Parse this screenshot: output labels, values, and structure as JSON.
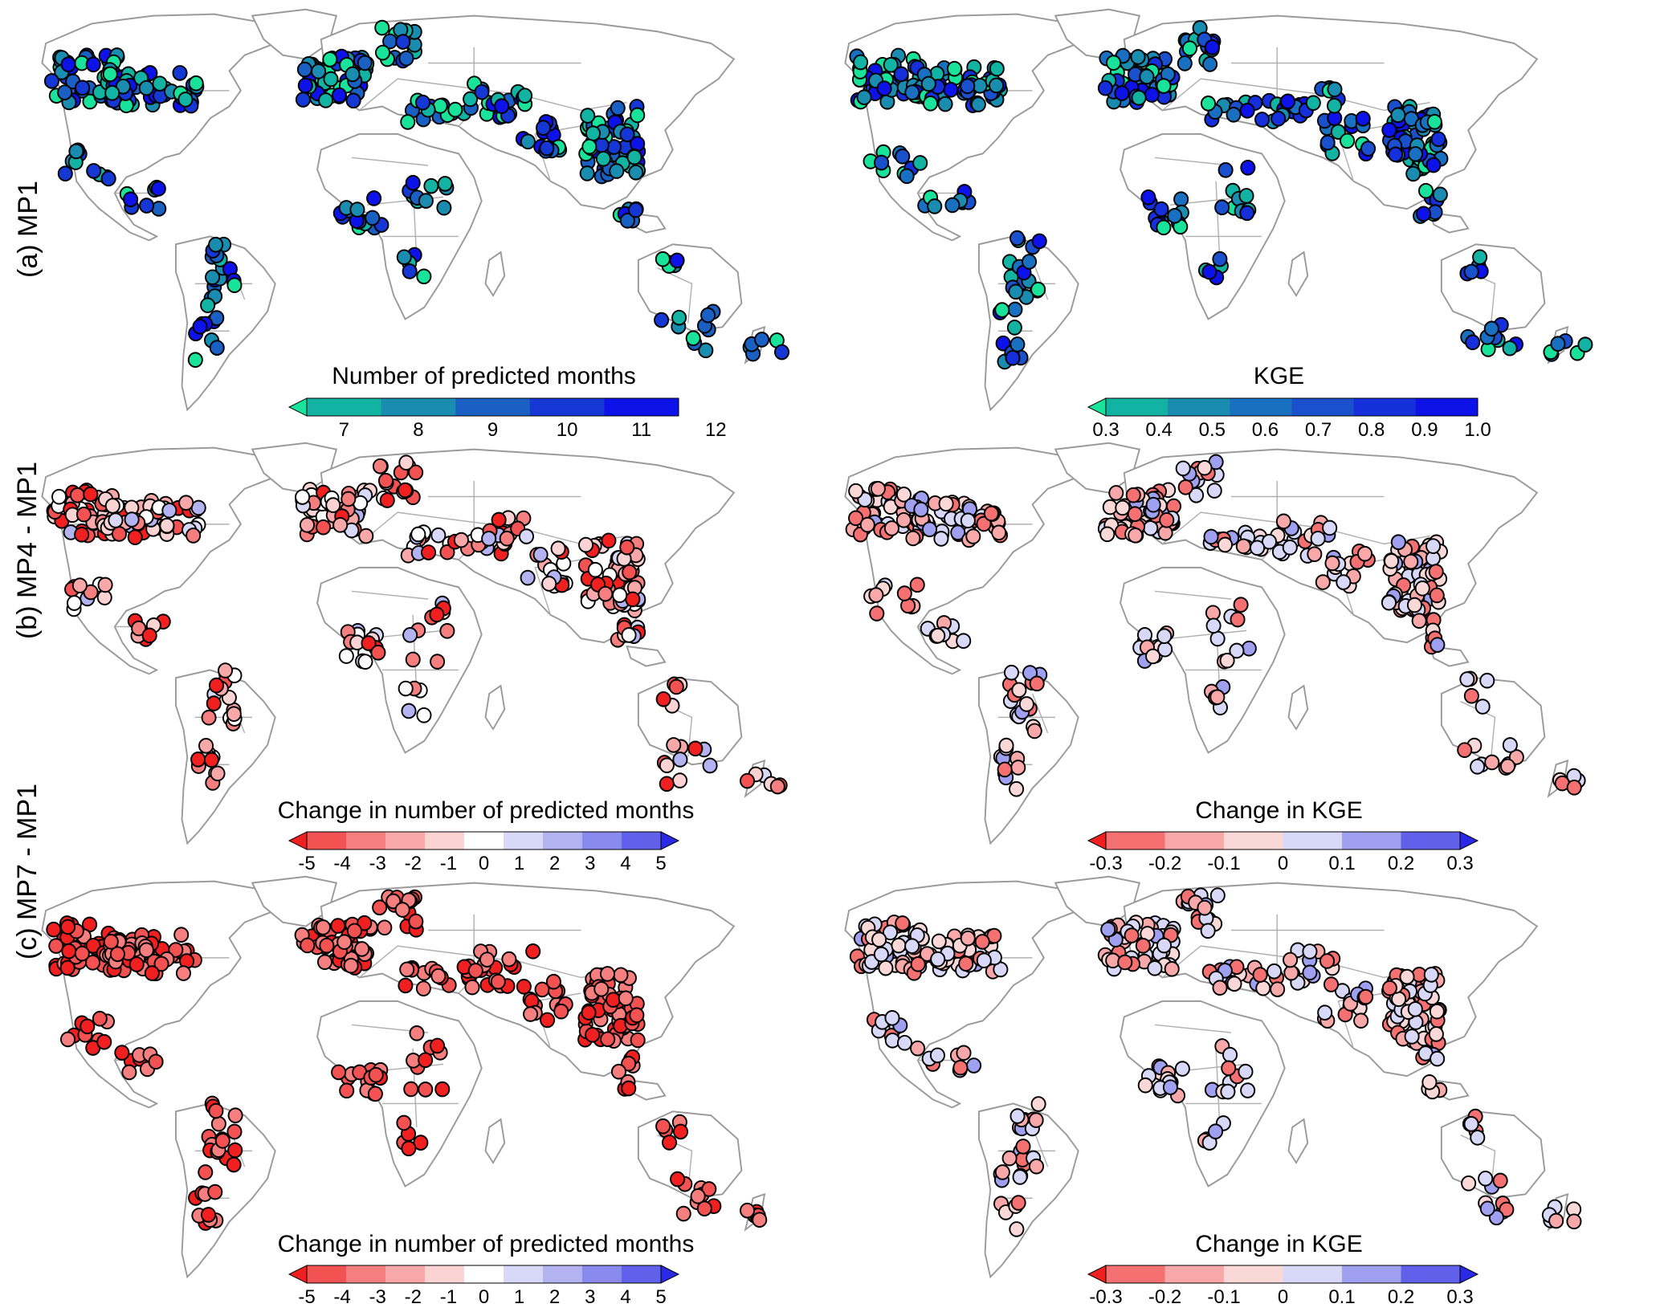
{
  "rows": [
    {
      "id": "a",
      "label": "(a) MP1",
      "left": {
        "title": "Number of predicted months",
        "ticks": [
          "7",
          "8",
          "9",
          "10",
          "11",
          "12"
        ],
        "colors": [
          "#19e39a",
          "#13b3a3",
          "#1a8cb0",
          "#1a60c3",
          "#1538d4",
          "#0c12e8"
        ],
        "extend": "left",
        "mode": "seq"
      },
      "right": {
        "title": "KGE",
        "ticks": [
          "0.3",
          "0.4",
          "0.5",
          "0.6",
          "0.7",
          "0.8",
          "0.9",
          "1.0"
        ],
        "colors": [
          "#19e39a",
          "#13b3a3",
          "#1a8cb0",
          "#1a70c0",
          "#1a50cc",
          "#1530da",
          "#0c12e8"
        ],
        "extend": "left",
        "mode": "seq"
      }
    },
    {
      "id": "b",
      "label": "(b) MP4 - MP1",
      "left": {
        "title": "Change in number of predicted months",
        "ticks": [
          "-5",
          "-4",
          "-3",
          "-2",
          "-1",
          "0",
          "1",
          "2",
          "3",
          "4",
          "5"
        ],
        "colors": [
          "#f02020",
          "#f25252",
          "#f57f7f",
          "#f8a8a8",
          "#fbd3d3",
          "#ffffff",
          "#d8d8f8",
          "#b3b3f2",
          "#8a8aee",
          "#6060ea",
          "#2a2ae6"
        ],
        "extend": "both",
        "mode": "div"
      },
      "right": {
        "title": "Change in KGE",
        "ticks": [
          "-0.3",
          "-0.2",
          "-0.1",
          "0",
          "0.1",
          "0.2",
          "0.3"
        ],
        "colors": [
          "#f02020",
          "#f57070",
          "#f8a8a8",
          "#fbd8d8",
          "#d8d8f8",
          "#a0a0f0",
          "#6060ea",
          "#2a2ae6"
        ],
        "extend": "both",
        "mode": "div"
      }
    },
    {
      "id": "c",
      "label": "(c) MP7 - MP1",
      "left": {
        "title": "Change in number of predicted months",
        "ticks": [
          "-5",
          "-4",
          "-3",
          "-2",
          "-1",
          "0",
          "1",
          "2",
          "3",
          "4",
          "5"
        ],
        "colors": [
          "#f02020",
          "#f25252",
          "#f57f7f",
          "#f8a8a8",
          "#fbd3d3",
          "#ffffff",
          "#d8d8f8",
          "#b3b3f2",
          "#8a8aee",
          "#6060ea",
          "#2a2ae6"
        ],
        "extend": "both",
        "mode": "div"
      },
      "right": {
        "title": "Change in KGE",
        "ticks": [
          "-0.3",
          "-0.2",
          "-0.1",
          "0",
          "0.1",
          "0.2",
          "0.3"
        ],
        "colors": [
          "#f02020",
          "#f57070",
          "#f8a8a8",
          "#fbd8d8",
          "#d8d8f8",
          "#a0a0f0",
          "#6060ea",
          "#2a2ae6"
        ],
        "extend": "both",
        "mode": "div"
      }
    }
  ]
}
